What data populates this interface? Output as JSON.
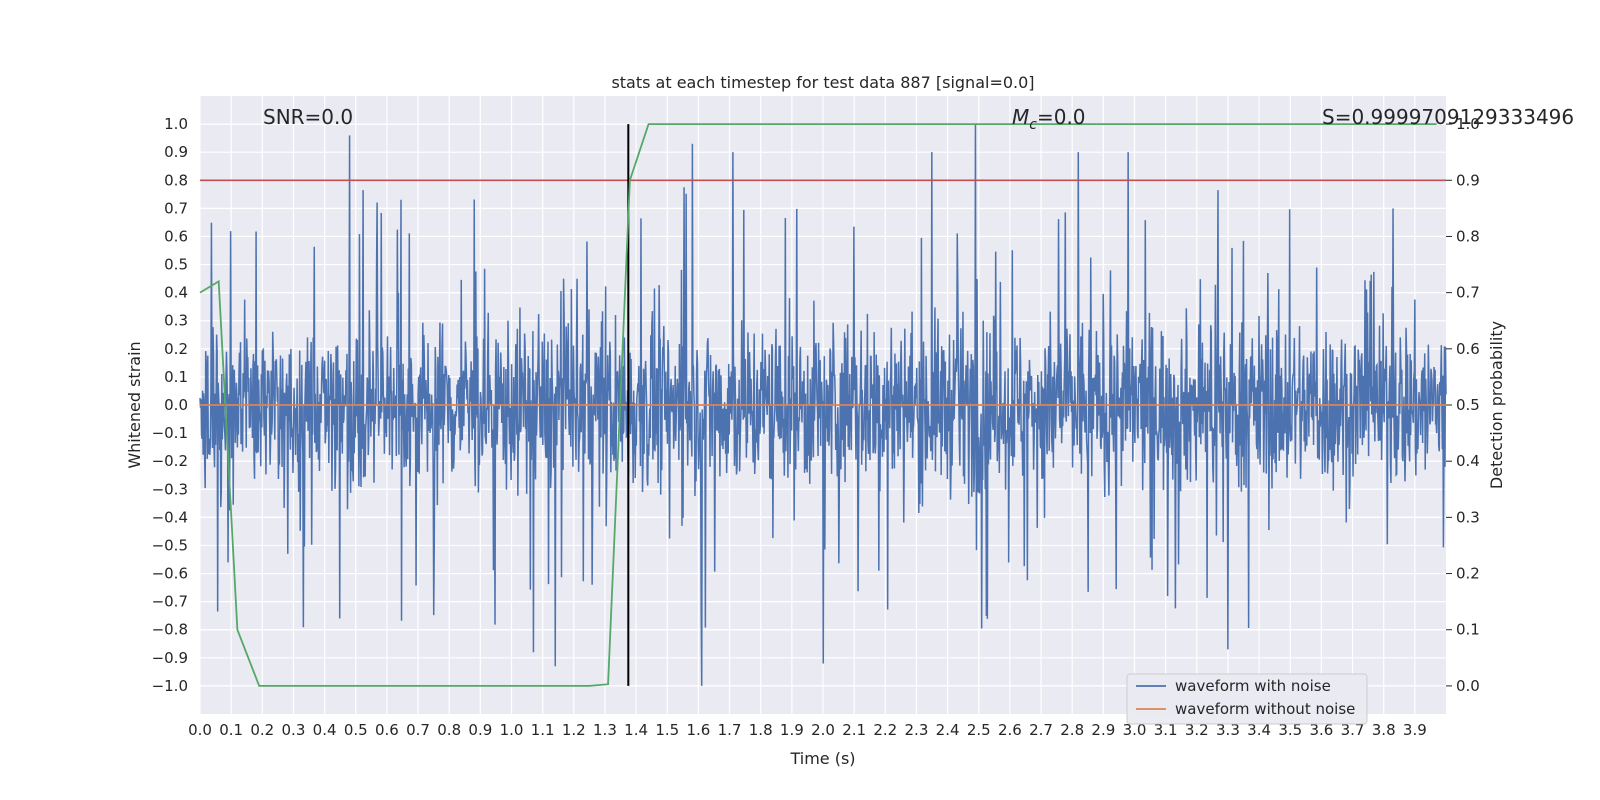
{
  "chart_data": {
    "type": "line",
    "title": "stats at each timestep for test data 887 [signal=0.0]",
    "xlabel": "Time (s)",
    "ylabel": "Whitened strain",
    "y2label": "Detection probability",
    "xlim": [
      0.0,
      4.0
    ],
    "ylim": [
      -1.1,
      1.1
    ],
    "y2lim": [
      -0.05,
      1.05
    ],
    "x_ticks": [
      "0.0",
      "0.1",
      "0.2",
      "0.3",
      "0.4",
      "0.5",
      "0.6",
      "0.7",
      "0.8",
      "0.9",
      "1.0",
      "1.1",
      "1.2",
      "1.3",
      "1.4",
      "1.5",
      "1.6",
      "1.7",
      "1.8",
      "1.9",
      "2.0",
      "2.1",
      "2.2",
      "2.3",
      "2.4",
      "2.5",
      "2.6",
      "2.7",
      "2.8",
      "2.9",
      "3.0",
      "3.1",
      "3.2",
      "3.3",
      "3.4",
      "3.5",
      "3.6",
      "3.7",
      "3.8",
      "3.9"
    ],
    "y_ticks": [
      "1.0",
      "0.9",
      "0.8",
      "0.7",
      "0.6",
      "0.5",
      "0.4",
      "0.3",
      "0.2",
      "0.1",
      "0.0",
      "-0.1",
      "-0.2",
      "-0.3",
      "-0.4",
      "-0.5",
      "-0.6",
      "-0.7",
      "-0.8",
      "-0.9",
      "-1.0"
    ],
    "y2_ticks": [
      "1.0",
      "0.9",
      "0.8",
      "0.7",
      "0.6",
      "0.5",
      "0.4",
      "0.3",
      "0.2",
      "0.1",
      "0.0"
    ],
    "grid": true,
    "legend_position": "bottom-right",
    "annotations": {
      "snr": "SNR=0.0",
      "mc_symbol": "M",
      "mc_sub": "c",
      "mc_value": "=0.0",
      "s": "S=0.9999709129333496"
    },
    "series": [
      {
        "name": "waveform with noise",
        "color": "#4c72b0",
        "axis": "left",
        "description_type": "noise",
        "noise_envelope": 0.38,
        "peaks": [
          {
            "x": 0.48,
            "y": 0.96
          },
          {
            "x": 2.49,
            "y": 1.0
          },
          {
            "x": 1.58,
            "y": 0.93
          },
          {
            "x": 2.98,
            "y": 0.9
          },
          {
            "x": 1.71,
            "y": 0.9
          },
          {
            "x": 2.35,
            "y": 0.9
          },
          {
            "x": 2.82,
            "y": 0.9
          },
          {
            "x": 1.61,
            "y": -1.0
          },
          {
            "x": 1.14,
            "y": -0.93
          },
          {
            "x": 3.3,
            "y": -0.87
          },
          {
            "x": 1.07,
            "y": -0.88
          },
          {
            "x": 2.0,
            "y": -0.92
          }
        ]
      },
      {
        "name": "waveform without noise",
        "color": "#dd8452",
        "axis": "left",
        "x": [
          0.0,
          4.0
        ],
        "y": [
          0.0,
          0.0
        ]
      },
      {
        "name": "",
        "color": "#55a868",
        "axis": "right",
        "x": [
          0.0,
          0.06,
          0.12,
          0.19,
          0.25,
          0.5,
          0.75,
          0.9,
          1.0,
          1.25,
          1.31,
          1.38,
          1.44,
          2.0,
          3.0,
          3.97
        ],
        "y": [
          0.7,
          0.72,
          0.1,
          0.0,
          0.0,
          0.0,
          0.0,
          0.0,
          0.0,
          0.0,
          0.003,
          0.9,
          1.0,
          1.0,
          1.0,
          1.0
        ]
      }
    ],
    "reference_lines": [
      {
        "type": "horizontal",
        "axis": "right",
        "value": 0.9,
        "color": "#c44e52"
      },
      {
        "type": "vertical",
        "x": 1.375,
        "color": "#000000"
      }
    ]
  }
}
